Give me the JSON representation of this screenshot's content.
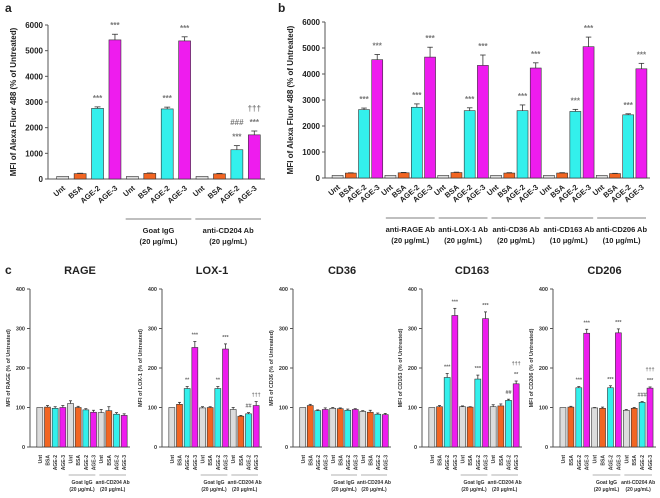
{
  "colors": {
    "Unt": "#dcdcdc",
    "BSA": "#f26522",
    "AGE-2": "#33f0ec",
    "AGE-3": "#ee1cee",
    "axis": "#555555"
  },
  "chart_data": [
    {
      "panel": "a",
      "type": "bar",
      "ylabel": "MFI of Alexa Fluor 488 (% of Untreated)",
      "ylim": [
        0,
        6000
      ],
      "yticks": [
        0,
        1000,
        2000,
        3000,
        4000,
        5000,
        6000
      ],
      "categories": [
        "Unt",
        "BSA",
        "AGE-2",
        "AGE-3"
      ],
      "groups": [
        {
          "label": "",
          "label2": "",
          "values": [
            100,
            210,
            2750,
            5420
          ],
          "errors": [
            0,
            15,
            60,
            220
          ],
          "marks": [
            "",
            "",
            "***",
            "***"
          ],
          "marks2": [
            "",
            "",
            "",
            ""
          ],
          "marks3": [
            "",
            "",
            "",
            ""
          ]
        },
        {
          "label": "Goat IgG",
          "label2": "(20 μg/mL)",
          "values": [
            100,
            220,
            2730,
            5380
          ],
          "errors": [
            0,
            15,
            70,
            160
          ],
          "marks": [
            "",
            "",
            "***",
            "***"
          ],
          "marks2": [
            "",
            "",
            "",
            ""
          ],
          "marks3": [
            "",
            "",
            "",
            ""
          ]
        },
        {
          "label": "anti-CD204 Ab",
          "label2": "(20 μg/mL)",
          "values": [
            100,
            200,
            1140,
            1720
          ],
          "errors": [
            0,
            20,
            160,
            150
          ],
          "marks": [
            "",
            "",
            "***",
            "***"
          ],
          "marks2": [
            "",
            "",
            "",
            "###"
          ],
          "marks3": [
            "",
            "",
            "",
            "†††"
          ]
        }
      ]
    },
    {
      "panel": "b",
      "type": "bar",
      "ylabel": "MFI of Alexa Fluor 488 (% of Untreated)",
      "ylim": [
        0,
        6000
      ],
      "yticks": [
        0,
        1000,
        2000,
        3000,
        4000,
        5000,
        6000
      ],
      "categories": [
        "Unt",
        "BSA",
        "AGE-2",
        "AGE-3"
      ],
      "groups": [
        {
          "label": "",
          "label2": "",
          "values": [
            100,
            190,
            2630,
            4550
          ],
          "errors": [
            0,
            10,
            60,
            200
          ],
          "marks": [
            "",
            "",
            "***",
            "***"
          ]
        },
        {
          "label": "anti-RAGE Ab",
          "label2": "(20 μg/mL)",
          "values": [
            100,
            200,
            2720,
            4650
          ],
          "errors": [
            0,
            15,
            130,
            380
          ],
          "marks": [
            "",
            "",
            "***",
            "***"
          ]
        },
        {
          "label": "anti-LOX-1 Ab",
          "label2": "(20 μg/mL)",
          "values": [
            100,
            210,
            2590,
            4330
          ],
          "errors": [
            0,
            15,
            110,
            400
          ],
          "marks": [
            "",
            "",
            "***",
            "***"
          ]
        },
        {
          "label": "anti-CD36 Ab",
          "label2": "(20 μg/mL)",
          "values": [
            100,
            190,
            2590,
            4230
          ],
          "errors": [
            0,
            15,
            220,
            200
          ],
          "marks": [
            "",
            "",
            "***",
            "***"
          ]
        },
        {
          "label": "anti-CD163 Ab",
          "label2": "(10 μg/mL)",
          "values": [
            100,
            190,
            2560,
            5050
          ],
          "errors": [
            0,
            15,
            80,
            370
          ],
          "marks": [
            "",
            "",
            "***",
            "***"
          ]
        },
        {
          "label": "anti-CD206 Ab",
          "label2": "(10 μg/mL)",
          "values": [
            100,
            170,
            2430,
            4200
          ],
          "errors": [
            0,
            10,
            40,
            210
          ],
          "marks": [
            "",
            "",
            "***",
            "***"
          ]
        }
      ]
    },
    {
      "panel": "c",
      "title": "RAGE",
      "type": "bar",
      "ylabel": "MFI of RAGE  (% of Untreated)",
      "ylim": [
        0,
        400
      ],
      "yticks": [
        0,
        100,
        200,
        300,
        400
      ],
      "categories": [
        "Unt",
        "BSA",
        "AGE-2",
        "AGE-3"
      ],
      "groups": [
        {
          "label": "",
          "label2": "",
          "values": [
            100,
            101,
            98,
            100
          ],
          "errors": [
            0,
            4,
            4,
            5
          ],
          "marks": [
            "",
            "",
            "",
            ""
          ],
          "marks2": [
            "",
            "",
            "",
            ""
          ],
          "marks3": [
            "",
            "",
            "",
            ""
          ]
        },
        {
          "label": "Goat IgG",
          "label2": "(20 μg/mL)",
          "values": [
            110,
            100,
            94,
            88
          ],
          "errors": [
            7,
            3,
            3,
            5
          ],
          "marks": [
            "",
            "",
            "",
            ""
          ],
          "marks2": [
            "",
            "",
            "",
            ""
          ],
          "marks3": [
            "",
            "",
            "",
            ""
          ]
        },
        {
          "label": "anti-CD204 Ab",
          "label2": "(20 μg/mL)",
          "values": [
            87,
            92,
            83,
            80
          ],
          "errors": [
            8,
            10,
            4,
            4
          ],
          "marks": [
            "",
            "",
            "",
            ""
          ],
          "marks2": [
            "",
            "",
            "",
            ""
          ],
          "marks3": [
            "",
            "",
            "",
            ""
          ]
        }
      ]
    },
    {
      "panel": "",
      "title": "LOX-1",
      "type": "bar",
      "ylabel": "MFI of LOX-1 (% of Untreated)",
      "ylim": [
        0,
        400
      ],
      "yticks": [
        0,
        100,
        200,
        300,
        400
      ],
      "categories": [
        "Unt",
        "BSA",
        "AGE-2",
        "AGE-3"
      ],
      "groups": [
        {
          "label": "",
          "label2": "",
          "values": [
            100,
            108,
            148,
            252
          ],
          "errors": [
            0,
            5,
            5,
            15
          ],
          "marks": [
            "",
            "",
            "**",
            "***"
          ],
          "marks2": [
            "",
            "",
            "",
            ""
          ],
          "marks3": [
            "",
            "",
            "",
            ""
          ]
        },
        {
          "label": "Goat IgG",
          "label2": "(20 μg/mL)",
          "values": [
            99,
            100,
            148,
            248
          ],
          "errors": [
            3,
            2,
            5,
            13
          ],
          "marks": [
            "",
            "",
            "**",
            "***"
          ],
          "marks2": [
            "",
            "",
            "",
            ""
          ],
          "marks3": [
            "",
            "",
            "",
            ""
          ]
        },
        {
          "label": "anti-CD204 Ab",
          "label2": "(20 μg/mL)",
          "values": [
            95,
            78,
            84,
            105
          ],
          "errors": [
            5,
            2,
            3,
            10
          ],
          "marks": [
            "",
            "",
            "",
            ""
          ],
          "marks2": [
            "",
            "",
            "##",
            ""
          ],
          "marks3": [
            "",
            "",
            "",
            "†††"
          ]
        }
      ]
    },
    {
      "panel": "",
      "title": "CD36",
      "type": "bar",
      "ylabel": "MFI of CD36  (% of Untreated)",
      "ylim": [
        0,
        400
      ],
      "yticks": [
        0,
        100,
        200,
        300,
        400
      ],
      "categories": [
        "Unt",
        "BSA",
        "AGE-2",
        "AGE-3"
      ],
      "groups": [
        {
          "label": "",
          "label2": "",
          "values": [
            100,
            105,
            92,
            95
          ],
          "errors": [
            0,
            3,
            2,
            4
          ],
          "marks": [
            "",
            "",
            "",
            ""
          ],
          "marks2": [
            "",
            "",
            "",
            ""
          ],
          "marks3": [
            "",
            "",
            "",
            ""
          ]
        },
        {
          "label": "Goat IgG",
          "label2": "(20 μg/mL)",
          "values": [
            98,
            97,
            93,
            95
          ],
          "errors": [
            2,
            2,
            3,
            2
          ],
          "marks": [
            "",
            "",
            "",
            ""
          ],
          "marks2": [
            "",
            "",
            "",
            ""
          ],
          "marks3": [
            "",
            "",
            "",
            ""
          ]
        },
        {
          "label": "anti-CD204 Ab",
          "label2": "(20 μg/mL)",
          "values": [
            90,
            88,
            83,
            82
          ],
          "errors": [
            2,
            5,
            3,
            3
          ],
          "marks": [
            "",
            "",
            "",
            ""
          ],
          "marks2": [
            "",
            "",
            "",
            ""
          ],
          "marks3": [
            "",
            "",
            "",
            ""
          ]
        }
      ]
    },
    {
      "panel": "",
      "title": "CD163",
      "type": "bar",
      "ylabel": "MFI of CD163  (% of Untreated)",
      "ylim": [
        0,
        400
      ],
      "yticks": [
        0,
        100,
        200,
        300,
        400
      ],
      "categories": [
        "Unt",
        "BSA",
        "AGE-2",
        "AGE-3"
      ],
      "groups": [
        {
          "label": "",
          "label2": "",
          "values": [
            100,
            102,
            176,
            333
          ],
          "errors": [
            0,
            3,
            10,
            18
          ],
          "marks": [
            "",
            "",
            "***",
            "***"
          ],
          "marks2": [
            "",
            "",
            "",
            ""
          ],
          "marks3": [
            "",
            "",
            "",
            ""
          ]
        },
        {
          "label": "Goat IgG",
          "label2": "(20 μg/mL)",
          "values": [
            102,
            101,
            172,
            325
          ],
          "errors": [
            2,
            1,
            10,
            17
          ],
          "marks": [
            "",
            "",
            "***",
            "***"
          ],
          "marks2": [
            "",
            "",
            "",
            ""
          ],
          "marks3": [
            "",
            "",
            "",
            ""
          ]
        },
        {
          "label": "anti-CD204 Ab",
          "label2": "(20 μg/mL)",
          "values": [
            102,
            104,
            118,
            160
          ],
          "errors": [
            5,
            5,
            3,
            7
          ],
          "marks": [
            "",
            "",
            "",
            "**"
          ],
          "marks2": [
            "",
            "",
            "##",
            ""
          ],
          "marks3": [
            "",
            "",
            "",
            "†††"
          ]
        }
      ]
    },
    {
      "panel": "",
      "title": "CD206",
      "type": "bar",
      "ylabel": "MFI of CD206  (% of Untreated)",
      "ylim": [
        0,
        400
      ],
      "yticks": [
        0,
        100,
        200,
        300,
        400
      ],
      "categories": [
        "Unt",
        "BSA",
        "AGE-2",
        "AGE-3"
      ],
      "groups": [
        {
          "label": "",
          "label2": "",
          "values": [
            100,
            101,
            150,
            288
          ],
          "errors": [
            0,
            2,
            3,
            10
          ],
          "marks": [
            "",
            "",
            "***",
            "***"
          ],
          "marks2": [
            "",
            "",
            "",
            ""
          ],
          "marks3": [
            "",
            "",
            "",
            ""
          ]
        },
        {
          "label": "Goat IgG",
          "label2": "(20 μg/mL)",
          "values": [
            99,
            98,
            150,
            289
          ],
          "errors": [
            1,
            3,
            5,
            10
          ],
          "marks": [
            "",
            "",
            "***",
            "***"
          ],
          "marks2": [
            "",
            "",
            "",
            ""
          ],
          "marks3": [
            "",
            "",
            "",
            ""
          ]
        },
        {
          "label": "anti-CD204 Ab",
          "label2": "(20 μg/mL)",
          "values": [
            93,
            98,
            113,
            149
          ],
          "errors": [
            2,
            2,
            2,
            3
          ],
          "marks": [
            "",
            "",
            "",
            "***"
          ],
          "marks2": [
            "",
            "",
            "###",
            ""
          ],
          "marks3": [
            "",
            "",
            "",
            "†††"
          ]
        }
      ]
    }
  ]
}
